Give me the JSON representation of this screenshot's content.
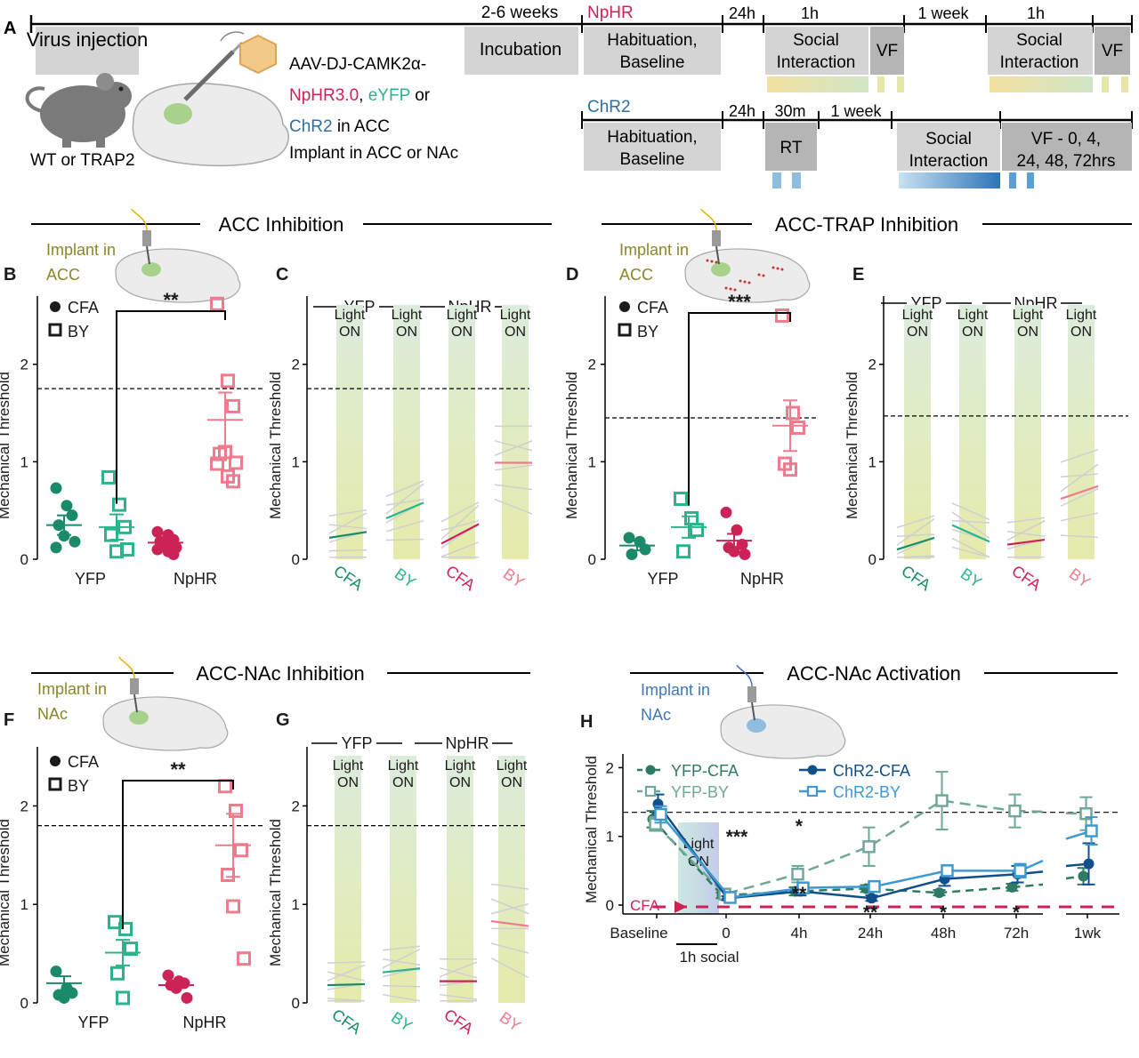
{
  "colors": {
    "yfp_cfa": "#1a8a6a",
    "yfp_by": "#2bb48c",
    "nphr_cfa": "#cc2356",
    "nphr_by": "#ee7b8e",
    "chr2_cfa": "#0f4f8c",
    "chr2_by": "#3e98d2",
    "yfp_h": "#2f7a63",
    "yfp_by_h": "#6fa898",
    "light_band": "#e3eccc",
    "grey_box": "#d4d4d4",
    "dark_box": "#b5b5b5",
    "implant": "#8b8628",
    "nphr_title": "#cc2356",
    "chr2_title": "#2e6fa8",
    "eyfp": "#2bb48c"
  },
  "panel_a": {
    "letter": "A",
    "virus_injection": "Virus injection",
    "weeks": "2-6 weeks",
    "incubation": "Incubation",
    "wt_trap2": "WT or TRAP2",
    "aav": "AAV-DJ-CAMK2α-",
    "nphr30": "NpHR3.0",
    "comma": ",",
    "eyfp": "eYFP",
    "or": "or",
    "chr2": "ChR2",
    "in_acc": "in ACC",
    "implant": "Implant in ACC or NAc",
    "nphr_label": "NpHR",
    "chr2_label": "ChR2",
    "habituation": "Habituation,",
    "baseline": "Baseline",
    "h24": "24h",
    "h1": "1h",
    "week1": "1 week",
    "social": "Social",
    "interaction": "Interaction",
    "vf": "VF",
    "m30": "30m",
    "rt": "RT",
    "vf_times_1": "VF - 0, 4,",
    "vf_times_2": "24, 48, 72hrs"
  },
  "sections": {
    "acc_inhibition": "ACC Inhibition",
    "acc_trap_inhibition": "ACC-TRAP Inhibition",
    "acc_nac_inhibition": "ACC-NAc Inhibition",
    "acc_nac_activation": "ACC-NAc Activation"
  },
  "common": {
    "ylabel": "Mechanical Threshold",
    "cfa": "CFA",
    "by": "BY",
    "yfp": "YFP",
    "nphr": "NpHR",
    "light": "Light",
    "on": "ON",
    "implant_in": "Implant in",
    "acc": "ACC",
    "nac": "NAc",
    "ticks": [
      "0",
      "1",
      "2"
    ]
  },
  "letters": {
    "b": "B",
    "c": "C",
    "d": "D",
    "e": "E",
    "f": "F",
    "g": "G",
    "h": "H"
  },
  "sig": {
    "b": "**",
    "d": "***",
    "f": "**"
  },
  "panel_h": {
    "legend": [
      "YFP-CFA",
      "YFP-BY",
      "ChR2-CFA",
      "ChR2-BY"
    ],
    "x_ticks": [
      "Baseline",
      "0",
      "4h",
      "24h",
      "48h",
      "72h",
      "1wk"
    ],
    "light": "Light",
    "on": "ON",
    "social": "1h social",
    "cfa": "CFA",
    "stars": [
      "***",
      "*",
      "**",
      "**",
      "*",
      "*"
    ]
  },
  "chart_data": [
    {
      "type": "scatter",
      "panel": "B",
      "categories": [
        "YFP",
        "NpHR"
      ],
      "ylim": [
        0,
        2.7
      ],
      "threshold": 1.75,
      "series": [
        {
          "name": "YFP CFA",
          "x": "YFP",
          "values": [
            0.73,
            0.55,
            0.45,
            0.35,
            0.24,
            0.18,
            0.12
          ],
          "mean": 0.35,
          "sem": 0.1
        },
        {
          "name": "YFP BY",
          "x": "YFP",
          "values": [
            0.84,
            0.56,
            0.33,
            0.25,
            0.08,
            0.1
          ],
          "mean": 0.33,
          "sem": 0.13
        },
        {
          "name": "NpHR CFA",
          "x": "NpHR",
          "values": [
            0.28,
            0.25,
            0.2,
            0.18,
            0.15,
            0.12,
            0.1,
            0.08,
            0.05
          ],
          "mean": 0.17,
          "sem": 0.03
        },
        {
          "name": "NpHR BY",
          "x": "NpHR",
          "values": [
            2.62,
            1.83,
            1.57,
            1.08,
            1.1,
            0.99,
            0.98,
            0.85,
            0.8
          ],
          "mean": 1.43,
          "sem": 0.28
        }
      ]
    },
    {
      "type": "line",
      "panel": "C",
      "groups": [
        "CFA",
        "BY",
        "CFA",
        "BY"
      ],
      "ylim": [
        0,
        2.7
      ],
      "threshold": 1.75,
      "means": [
        [
          0.22,
          0.28
        ],
        [
          0.42,
          0.58
        ],
        [
          0.16,
          0.36
        ],
        [
          0.99,
          0.99
        ]
      ]
    },
    {
      "type": "scatter",
      "panel": "D",
      "categories": [
        "YFP",
        "NpHR"
      ],
      "ylim": [
        0,
        2.7
      ],
      "threshold": 1.45,
      "series": [
        {
          "name": "YFP CFA",
          "x": "YFP",
          "values": [
            0.22,
            0.18,
            0.1,
            0.05
          ],
          "mean": 0.14,
          "sem": 0.05
        },
        {
          "name": "YFP BY",
          "x": "YFP",
          "values": [
            0.62,
            0.42,
            0.3,
            0.08
          ],
          "mean": 0.33,
          "sem": 0.11
        },
        {
          "name": "NpHR CFA",
          "x": "NpHR",
          "values": [
            0.48,
            0.3,
            0.15,
            0.12,
            0.08,
            0.05
          ],
          "mean": 0.19,
          "sem": 0.07
        },
        {
          "name": "NpHR BY",
          "x": "NpHR",
          "values": [
            2.5,
            1.5,
            1.35,
            0.98,
            0.92
          ],
          "mean": 1.37,
          "sem": 0.26
        }
      ]
    },
    {
      "type": "line",
      "panel": "E",
      "groups": [
        "CFA",
        "BY",
        "CFA",
        "BY"
      ],
      "ylim": [
        0,
        2.7
      ],
      "threshold": 1.47,
      "means": [
        [
          0.1,
          0.22
        ],
        [
          0.35,
          0.18
        ],
        [
          0.15,
          0.2
        ],
        [
          0.62,
          0.75
        ]
      ]
    },
    {
      "type": "scatter",
      "panel": "F",
      "categories": [
        "YFP",
        "NpHR"
      ],
      "ylim": [
        0,
        2.6
      ],
      "threshold": 1.8,
      "series": [
        {
          "name": "YFP CFA",
          "x": "YFP",
          "values": [
            0.32,
            0.15,
            0.1,
            0.08,
            0.05
          ],
          "mean": 0.2,
          "sem": 0.07
        },
        {
          "name": "YFP BY",
          "x": "YFP",
          "values": [
            0.82,
            0.75,
            0.55,
            0.3,
            0.05
          ],
          "mean": 0.51,
          "sem": 0.13
        },
        {
          "name": "NpHR CFA",
          "x": "NpHR",
          "values": [
            0.28,
            0.22,
            0.2,
            0.18,
            0.15,
            0.05
          ],
          "mean": 0.18,
          "sem": 0.03
        },
        {
          "name": "NpHR BY",
          "x": "NpHR",
          "values": [
            2.2,
            1.95,
            1.55,
            1.3,
            0.98,
            0.45
          ],
          "mean": 1.6,
          "sem": 0.32
        }
      ]
    },
    {
      "type": "line",
      "panel": "G",
      "groups": [
        "CFA",
        "BY",
        "CFA",
        "BY"
      ],
      "ylim": [
        0,
        2.6
      ],
      "threshold": 1.8,
      "means": [
        [
          0.18,
          0.19
        ],
        [
          0.31,
          0.35
        ],
        [
          0.22,
          0.22
        ],
        [
          0.83,
          0.78
        ]
      ]
    },
    {
      "type": "line",
      "panel": "H",
      "x": [
        "Baseline",
        "0",
        "4h",
        "24h",
        "48h",
        "72h",
        "1wk"
      ],
      "ylim": [
        0,
        2.2
      ],
      "threshold": 1.35,
      "series": [
        {
          "name": "YFP-CFA",
          "values": [
            1.25,
            0.14,
            0.2,
            0.24,
            0.18,
            0.26,
            0.42
          ],
          "sem": [
            0.12,
            0.04,
            0.06,
            0.05,
            0.04,
            0.05,
            0.12
          ]
        },
        {
          "name": "YFP-BY",
          "values": [
            1.18,
            0.16,
            0.45,
            0.85,
            1.52,
            1.37,
            1.33
          ],
          "sem": [
            0.1,
            0.05,
            0.12,
            0.28,
            0.42,
            0.24,
            0.24
          ]
        },
        {
          "name": "ChR2-CFA",
          "values": [
            1.47,
            0.1,
            0.2,
            0.1,
            0.38,
            0.45,
            0.6
          ],
          "sem": [
            0.14,
            0.03,
            0.06,
            0.04,
            0.1,
            0.12,
            0.3
          ]
        },
        {
          "name": "ChR2-BY",
          "values": [
            1.32,
            0.11,
            0.25,
            0.27,
            0.5,
            0.5,
            1.08
          ],
          "sem": [
            0.12,
            0.03,
            0.05,
            0.06,
            0.08,
            0.1,
            0.2
          ]
        }
      ]
    }
  ]
}
